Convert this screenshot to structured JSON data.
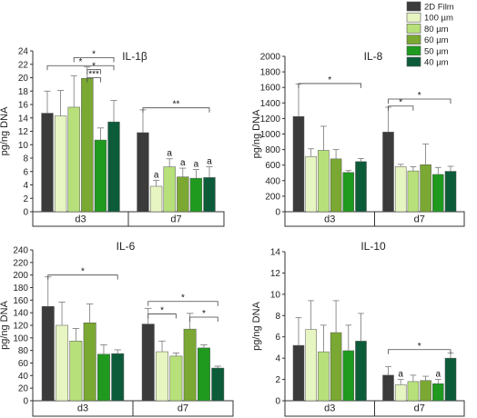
{
  "legend": {
    "items": [
      {
        "label": "2D Film",
        "color": "#3b3b3b"
      },
      {
        "label": "100 µm",
        "color": "#e6f5c2"
      },
      {
        "label": "80 µm",
        "color": "#b7e07a"
      },
      {
        "label": "60 µm",
        "color": "#7aa832"
      },
      {
        "label": "50 µm",
        "color": "#1f9a1f"
      },
      {
        "label": "40 µm",
        "color": "#0c5c3a"
      }
    ]
  },
  "chart_data": [
    {
      "type": "bar",
      "title": "IL-1β",
      "ylabel": "pg/ng DNA",
      "ylim": [
        0,
        24
      ],
      "yticks": [
        0,
        2,
        4,
        6,
        8,
        10,
        12,
        14,
        16,
        18,
        20,
        22,
        24
      ],
      "categories": [
        "d3",
        "d7"
      ],
      "series": [
        {
          "name": "2D Film",
          "values": [
            14.7,
            11.8
          ],
          "errors": [
            3.3,
            3.4
          ]
        },
        {
          "name": "100 µm",
          "values": [
            14.3,
            3.8
          ],
          "errors": [
            3.8,
            0.9
          ]
        },
        {
          "name": "80 µm",
          "values": [
            15.6,
            6.7
          ],
          "errors": [
            4.7,
            1.2
          ]
        },
        {
          "name": "60 µm",
          "values": [
            19.9,
            5.2
          ],
          "errors": [
            1.7,
            1.3
          ]
        },
        {
          "name": "50 µm",
          "values": [
            10.7,
            5.0
          ],
          "errors": [
            1.8,
            1.3
          ]
        },
        {
          "name": "40 µm",
          "values": [
            13.4,
            5.1
          ],
          "errors": [
            3.2,
            1.6
          ]
        }
      ],
      "letters": [
        {
          "category": "d7",
          "series": "100 µm",
          "text": "a"
        },
        {
          "category": "d7",
          "series": "80 µm",
          "text": "a"
        },
        {
          "category": "d7",
          "series": "60 µm",
          "text": "a"
        },
        {
          "category": "d7",
          "series": "50 µm",
          "text": "a"
        },
        {
          "category": "d7",
          "series": "40 µm",
          "text": "a"
        }
      ],
      "brackets": [
        {
          "group": "d3",
          "from": 0,
          "to": 5,
          "level": 21.8,
          "text": "*"
        },
        {
          "group": "d3",
          "from": 2,
          "to": 5,
          "level": 23.0,
          "text": "*"
        },
        {
          "group": "d3",
          "from": 3,
          "to": 4,
          "level": 21.2,
          "text": "*"
        },
        {
          "group": "d3",
          "from": 3,
          "to": 4,
          "level": 20.0,
          "text": "***"
        },
        {
          "group": "d7",
          "from": 0,
          "to": 5,
          "level": 15.5,
          "text": "**"
        }
      ]
    },
    {
      "type": "bar",
      "title": "IL-8",
      "ylabel": "pg/ng DNA",
      "ylim": [
        0,
        2000
      ],
      "yticks": [
        0,
        200,
        400,
        600,
        800,
        1000,
        1200,
        1400,
        1600,
        1800,
        2000
      ],
      "categories": [
        "d3",
        "d7"
      ],
      "series": [
        {
          "name": "2D Film",
          "values": [
            1225,
            1025
          ],
          "errors": [
            420,
            320
          ]
        },
        {
          "name": "100 µm",
          "values": [
            710,
            580
          ],
          "errors": [
            100,
            30
          ]
        },
        {
          "name": "80 µm",
          "values": [
            790,
            525
          ],
          "errors": [
            310,
            55
          ]
        },
        {
          "name": "60 µm",
          "values": [
            680,
            605
          ],
          "errors": [
            120,
            265
          ]
        },
        {
          "name": "50 µm",
          "values": [
            505,
            480
          ],
          "errors": [
            25,
            90
          ]
        },
        {
          "name": "40 µm",
          "values": [
            645,
            520
          ],
          "errors": [
            40,
            65
          ]
        }
      ],
      "letters": [],
      "brackets": [
        {
          "group": "d3",
          "from": 0,
          "to": 5,
          "level": 1650,
          "text": "*"
        },
        {
          "group": "d7",
          "from": 0,
          "to": 2,
          "level": 1360,
          "text": "*"
        },
        {
          "group": "d7",
          "from": 0,
          "to": 5,
          "level": 1450,
          "text": "*"
        }
      ]
    },
    {
      "type": "bar",
      "title": "IL-6",
      "ylabel": "pg/ng DNA",
      "ylim": [
        0,
        240
      ],
      "yticks": [
        0,
        20,
        40,
        60,
        80,
        100,
        120,
        140,
        160,
        180,
        200,
        220,
        240
      ],
      "categories": [
        "d3",
        "d7"
      ],
      "series": [
        {
          "name": "2D Film",
          "values": [
            150,
            122
          ],
          "errors": [
            47,
            25
          ]
        },
        {
          "name": "100 µm",
          "values": [
            120,
            78
          ],
          "errors": [
            37,
            17
          ]
        },
        {
          "name": "80 µm",
          "values": [
            95,
            71
          ],
          "errors": [
            20,
            5
          ]
        },
        {
          "name": "60 µm",
          "values": [
            124,
            114
          ],
          "errors": [
            30,
            25
          ]
        },
        {
          "name": "50 µm",
          "values": [
            74,
            84
          ],
          "errors": [
            15,
            5
          ]
        },
        {
          "name": "40 µm",
          "values": [
            75,
            52
          ],
          "errors": [
            6,
            3
          ]
        }
      ],
      "letters": [],
      "brackets": [
        {
          "group": "d3",
          "from": 0,
          "to": 5,
          "level": 200,
          "text": "*"
        },
        {
          "group": "d7",
          "from": 0,
          "to": 2,
          "level": 138,
          "text": "*"
        },
        {
          "group": "d7",
          "from": 0,
          "to": 5,
          "level": 158,
          "text": "*"
        },
        {
          "group": "d7",
          "from": 3,
          "to": 5,
          "level": 133,
          "text": "*"
        }
      ]
    },
    {
      "type": "bar",
      "title": "IL-10",
      "ylabel": "pg/ng DNA",
      "ylim": [
        0,
        14
      ],
      "yticks": [
        0,
        2,
        4,
        6,
        8,
        10,
        12,
        14
      ],
      "categories": [
        "d3",
        "d7"
      ],
      "series": [
        {
          "name": "2D Film",
          "values": [
            5.2,
            2.4
          ],
          "errors": [
            2.6,
            0.8
          ]
        },
        {
          "name": "100 µm",
          "values": [
            6.7,
            1.5
          ],
          "errors": [
            2.7,
            0.5
          ]
        },
        {
          "name": "80 µm",
          "values": [
            4.6,
            1.8
          ],
          "errors": [
            2.5,
            0.6
          ]
        },
        {
          "name": "60 µm",
          "values": [
            6.4,
            1.9
          ],
          "errors": [
            3.0,
            0.4
          ]
        },
        {
          "name": "50 µm",
          "values": [
            4.7,
            1.6
          ],
          "errors": [
            2.4,
            0.4
          ]
        },
        {
          "name": "40 µm",
          "values": [
            5.6,
            4.0
          ],
          "errors": [
            2.6,
            0.5
          ]
        }
      ],
      "letters": [
        {
          "category": "d7",
          "series": "100 µm",
          "text": "a"
        },
        {
          "category": "d7",
          "series": "50 µm",
          "text": "a"
        }
      ],
      "brackets": [
        {
          "group": "d7",
          "from": 0,
          "to": 5,
          "level": 4.8,
          "text": "*"
        }
      ]
    }
  ]
}
